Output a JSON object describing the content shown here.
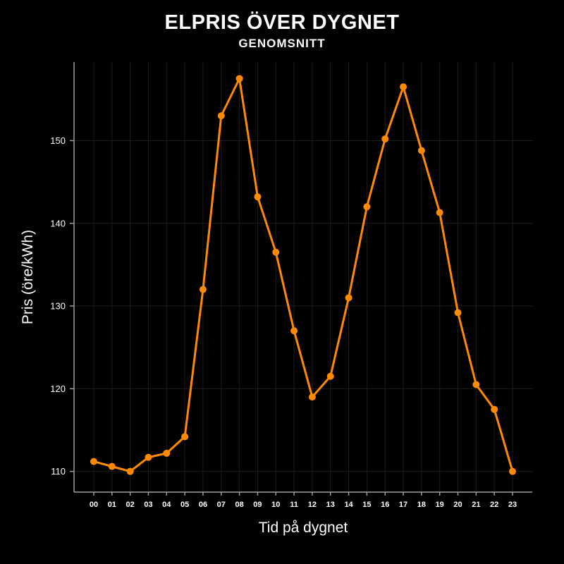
{
  "chart_data": {
    "type": "line",
    "title": "ELPRIS ÖVER DYGNET",
    "subtitle": "GENOMSNITT",
    "xlabel": "Tid på dygnet",
    "ylabel": "Pris (öre/kWh)",
    "categories": [
      "00",
      "01",
      "02",
      "03",
      "04",
      "05",
      "06",
      "07",
      "08",
      "09",
      "10",
      "11",
      "12",
      "13",
      "14",
      "15",
      "16",
      "17",
      "18",
      "19",
      "20",
      "21",
      "22",
      "23"
    ],
    "values": [
      111.2,
      110.6,
      110.0,
      111.7,
      112.2,
      114.2,
      132.0,
      153.0,
      157.5,
      143.2,
      136.5,
      127.0,
      119.0,
      121.5,
      131.0,
      142.0,
      150.2,
      156.5,
      148.8,
      141.3,
      129.2,
      120.5,
      117.5,
      110.0
    ],
    "yticks": [
      110,
      120,
      130,
      140,
      150
    ],
    "ylim": [
      107.5,
      159.5
    ],
    "grid": true,
    "legend": "none",
    "colors": {
      "background": "#000000",
      "text": "#ffffff",
      "grid": "#1c1c1c",
      "axis": "#9e9e9e",
      "line": "#ff8a00",
      "marker": "#ff8a00"
    }
  }
}
